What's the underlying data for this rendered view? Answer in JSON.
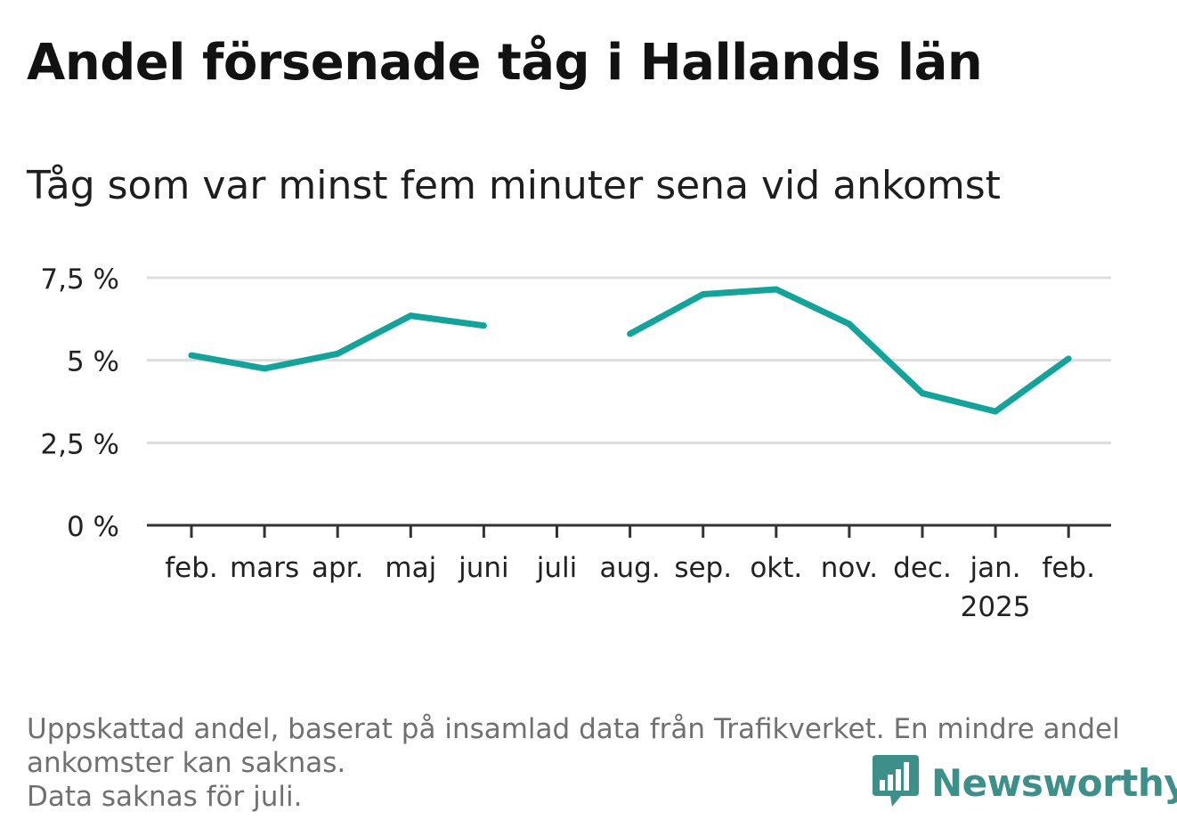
{
  "title": "Andel försenade tåg i Hallands län",
  "subtitle": "Tåg som var minst fem minuter sena vid ankomst",
  "notes": [
    "Uppskattad andel, baserat på insamlad data från Trafikverket. En mindre andel",
    "ankomster kan saknas.",
    "Data saknas för juli."
  ],
  "brand": {
    "name": "Newsworthy",
    "icon": "newsworthy-logo-icon",
    "color": "#3d8f8a"
  },
  "colors": {
    "line": "#13a39a",
    "grid": "#dddddd",
    "axis": "#333333"
  },
  "chart_data": {
    "type": "line",
    "categories": [
      "feb.",
      "mars",
      "apr.",
      "maj",
      "juni",
      "juli",
      "aug.",
      "sep.",
      "okt.",
      "nov.",
      "dec.",
      "jan.",
      "feb."
    ],
    "category_sublabels": [
      "",
      "",
      "",
      "",
      "",
      "",
      "",
      "",
      "",
      "",
      "",
      "2025",
      ""
    ],
    "values": [
      5.15,
      4.75,
      5.2,
      6.35,
      6.05,
      null,
      5.8,
      7.0,
      7.15,
      6.1,
      4.0,
      3.45,
      5.05
    ],
    "ylim": [
      0,
      7.5
    ],
    "yticks": [
      0,
      2.5,
      5,
      7.5
    ],
    "ytick_labels": [
      "0 %",
      "2,5 %",
      "5 %",
      "7,5 %"
    ],
    "xlabel": "",
    "ylabel": "",
    "grid": true,
    "legend": "none"
  }
}
